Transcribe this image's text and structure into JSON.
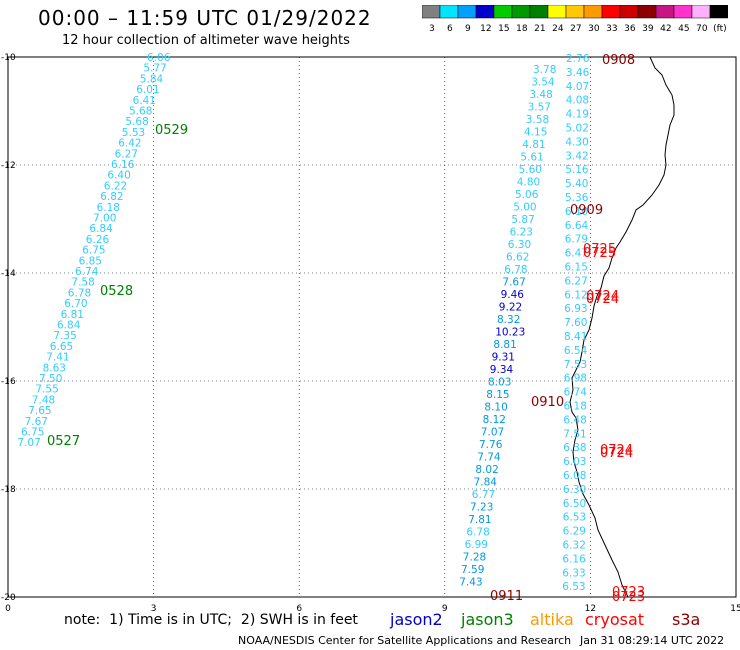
{
  "header": {
    "title": "00:00 – 11:59 UTC 01/29/2022",
    "subtitle": "12 hour collection of altimeter wave heights"
  },
  "colorbar": {
    "labels": [
      "3",
      "6",
      "9",
      "12",
      "15",
      "18",
      "21",
      "24",
      "27",
      "30",
      "33",
      "36",
      "39",
      "42",
      "45",
      "70",
      "(ft)"
    ],
    "colors": [
      "#808080",
      "#00e5ff",
      "#00a0ff",
      "#0000cd",
      "#00cc00",
      "#009900",
      "#008000",
      "#ffff00",
      "#ffc800",
      "#ff9900",
      "#ff0000",
      "#cc0000",
      "#8b0000",
      "#c71585",
      "#ff33cc",
      "#ffb0ff",
      "#000000"
    ]
  },
  "axes": {
    "x_ticks": [
      "0",
      "3",
      "6",
      "9",
      "12",
      "15"
    ],
    "y_ticks": [
      "-10",
      "-12",
      "-14",
      "-16",
      "-18",
      "-20"
    ]
  },
  "tracks": {
    "track_0529_0528_0527": {
      "color": "#33ccff",
      "values": [
        "6.06",
        "5.77",
        "5.84",
        "6.01",
        "6.41",
        "5.68",
        "5.68",
        "5.53",
        "6.42",
        "6.27",
        "6.16",
        "6.40",
        "6.22",
        "6.82",
        "6.18",
        "7.00",
        "6.84",
        "6.26",
        "6.75",
        "6.85",
        "6.74",
        "7.58",
        "6.78",
        "6.70",
        "6.81",
        "6.84",
        "7.35",
        "6.65",
        "7.41",
        "8.63",
        "7.50",
        "7.55",
        "7.48",
        "7.65",
        "7.67",
        "6.75",
        "7.07"
      ]
    },
    "track_0909_0910_0911": {
      "values": [
        {
          "v": "3.78",
          "c": "#33ccff"
        },
        {
          "v": "3.54",
          "c": "#33ccff"
        },
        {
          "v": "3.48",
          "c": "#33ccff"
        },
        {
          "v": "3.57",
          "c": "#33ccff"
        },
        {
          "v": "3.58",
          "c": "#33ccff"
        },
        {
          "v": "4.15",
          "c": "#33ccff"
        },
        {
          "v": "4.81",
          "c": "#33ccff"
        },
        {
          "v": "5.61",
          "c": "#33ccff"
        },
        {
          "v": "5.60",
          "c": "#33ccff"
        },
        {
          "v": "4.80",
          "c": "#33ccff"
        },
        {
          "v": "5.06",
          "c": "#33ccff"
        },
        {
          "v": "5.00",
          "c": "#33ccff"
        },
        {
          "v": "5.87",
          "c": "#33ccff"
        },
        {
          "v": "6.23",
          "c": "#33ccff"
        },
        {
          "v": "6.30",
          "c": "#33ccff"
        },
        {
          "v": "6.62",
          "c": "#33ccff"
        },
        {
          "v": "6.78",
          "c": "#33ccff"
        },
        {
          "v": "7.67",
          "c": "#0099dd"
        },
        {
          "v": "9.46",
          "c": "#0000cd"
        },
        {
          "v": "9.22",
          "c": "#0000cd"
        },
        {
          "v": "8.32",
          "c": "#0099dd"
        },
        {
          "v": "10.23",
          "c": "#0000cd"
        },
        {
          "v": "8.81",
          "c": "#0099dd"
        },
        {
          "v": "9.31",
          "c": "#0000cd"
        },
        {
          "v": "9.34",
          "c": "#0000cd"
        },
        {
          "v": "8.03",
          "c": "#0099dd"
        },
        {
          "v": "8.15",
          "c": "#0099dd"
        },
        {
          "v": "8.10",
          "c": "#0099dd"
        },
        {
          "v": "8.12",
          "c": "#0099dd"
        },
        {
          "v": "7.07",
          "c": "#0099dd"
        },
        {
          "v": "7.76",
          "c": "#0099dd"
        },
        {
          "v": "7.74",
          "c": "#0099dd"
        },
        {
          "v": "8.02",
          "c": "#0099dd"
        },
        {
          "v": "7.84",
          "c": "#0099dd"
        },
        {
          "v": "6.77",
          "c": "#33ccff"
        },
        {
          "v": "7.23",
          "c": "#0099dd"
        },
        {
          "v": "7.81",
          "c": "#0099dd"
        },
        {
          "v": "6.78",
          "c": "#33ccff"
        },
        {
          "v": "6.99",
          "c": "#33ccff"
        },
        {
          "v": "7.28",
          "c": "#0099dd"
        },
        {
          "v": "7.59",
          "c": "#0099dd"
        },
        {
          "v": "7.43",
          "c": "#0099dd"
        }
      ]
    },
    "track_0908": {
      "color": "#33ccff",
      "values": [
        "2.76",
        "3.46",
        "4.07",
        "4.08",
        "4.19",
        "5.02",
        "4.30",
        "3.42",
        "5.16",
        "5.40",
        "5.36",
        "6.10",
        "6.64",
        "6.79",
        "6.47",
        "6.15",
        "6.27",
        "6.12",
        "6.93",
        "7.60",
        "8.41",
        "6.54",
        "7.53",
        "6.98",
        "6.74",
        "6.18",
        "6.48",
        "7.51",
        "6.38",
        "6.03",
        "6.08",
        "6.30",
        "6.50",
        "6.53",
        "6.29",
        "6.32",
        "6.16",
        "6.33",
        "6.53"
      ]
    }
  },
  "pass_labels": [
    {
      "text": "0908",
      "color": "#8b0000"
    },
    {
      "text": "0529",
      "color": "#008000"
    },
    {
      "text": "0909",
      "color": "#8b0000"
    },
    {
      "text": "0725",
      "color": "#ff0000"
    },
    {
      "text": "0725",
      "color": "#ff0000"
    },
    {
      "text": "0528",
      "color": "#008000"
    },
    {
      "text": "0724",
      "color": "#ff0000"
    },
    {
      "text": "0724",
      "color": "#ff0000"
    },
    {
      "text": "0910",
      "color": "#8b0000"
    },
    {
      "text": "0527",
      "color": "#008000"
    },
    {
      "text": "0724",
      "color": "#ff0000"
    },
    {
      "text": "0724",
      "color": "#ff0000"
    },
    {
      "text": "0911",
      "color": "#8b0000"
    },
    {
      "text": "0723",
      "color": "#ff0000"
    },
    {
      "text": "0723",
      "color": "#ff0000"
    }
  ],
  "footer": {
    "note": "note:  1) Time is in UTC;  2) SWH is in feet",
    "satellites": [
      {
        "name": "jason2",
        "color": "#0000cd"
      },
      {
        "name": "jason3",
        "color": "#008000"
      },
      {
        "name": "altika",
        "color": "#ff9900"
      },
      {
        "name": "cryosat",
        "color": "#ff0000"
      },
      {
        "name": "s3a",
        "color": "#8b0000"
      }
    ],
    "credit": "NOAA/NESDIS Center for Satellite Applications and Research",
    "timestamp": "Jan 31 08:29:14 UTC 2022"
  }
}
